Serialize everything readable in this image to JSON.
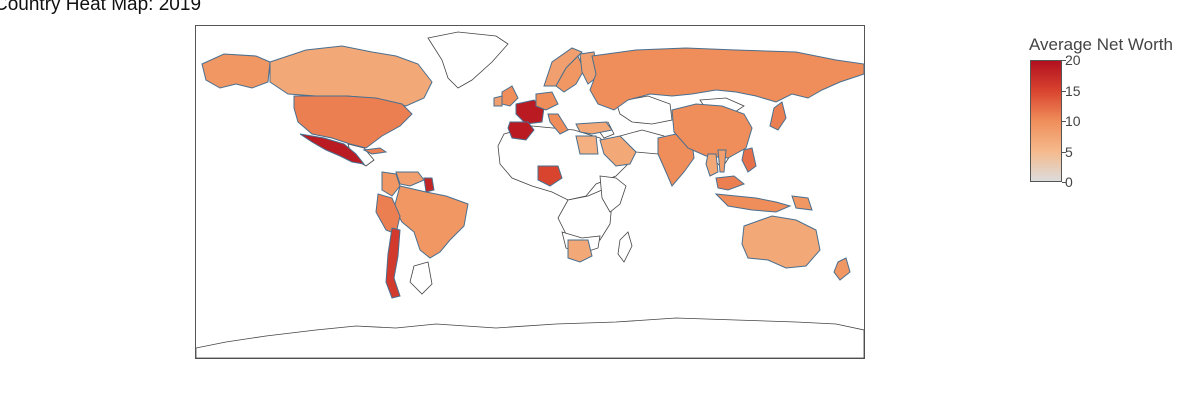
{
  "title": "Country Heat Map: 2019",
  "colorbar": {
    "title": "Average Net Worth",
    "min": 0,
    "max": 20,
    "ticks": [
      0,
      5,
      10,
      15,
      20
    ],
    "colors": [
      "#dcdcdc",
      "#f5b98b",
      "#ef8e5a",
      "#d9442f",
      "#b2101f"
    ]
  },
  "colors": {
    "border_highlighted": "#4a6f8f",
    "border_land": "#444444",
    "no_data_fill": "#ffffff"
  },
  "chart_data": {
    "type": "choropleth",
    "projection": "equirectangular",
    "regions": [
      {
        "region": "Alaska",
        "value": 9
      },
      {
        "region": "Canada",
        "value": 7
      },
      {
        "region": "United States",
        "value": 11
      },
      {
        "region": "Mexico",
        "value": 19
      },
      {
        "region": "Cuba",
        "value": 11
      },
      {
        "region": "Colombia",
        "value": 9
      },
      {
        "region": "Venezuela",
        "value": 8
      },
      {
        "region": "Guyana",
        "value": 18
      },
      {
        "region": "Brazil",
        "value": 9
      },
      {
        "region": "Peru",
        "value": 11
      },
      {
        "region": "Chile",
        "value": 16
      },
      {
        "region": "United Kingdom",
        "value": 10
      },
      {
        "region": "Ireland",
        "value": 8
      },
      {
        "region": "France",
        "value": 19
      },
      {
        "region": "Spain",
        "value": 19
      },
      {
        "region": "Germany",
        "value": 10
      },
      {
        "region": "Italy",
        "value": 10
      },
      {
        "region": "Norway",
        "value": 8
      },
      {
        "region": "Sweden",
        "value": 9
      },
      {
        "region": "Finland",
        "value": 8
      },
      {
        "region": "Russia",
        "value": 10
      },
      {
        "region": "Turkey",
        "value": 7
      },
      {
        "region": "Saudi Arabia",
        "value": 7
      },
      {
        "region": "Egypt",
        "value": 6
      },
      {
        "region": "Nigeria",
        "value": 15
      },
      {
        "region": "South Africa",
        "value": 7
      },
      {
        "region": "India",
        "value": 10
      },
      {
        "region": "China",
        "value": 10
      },
      {
        "region": "Japan",
        "value": 11
      },
      {
        "region": "Thailand",
        "value": 7
      },
      {
        "region": "Vietnam",
        "value": 8
      },
      {
        "region": "Malaysia",
        "value": 11
      },
      {
        "region": "Indonesia",
        "value": 10
      },
      {
        "region": "Philippines",
        "value": 12
      },
      {
        "region": "Papua New Guinea",
        "value": 9
      },
      {
        "region": "Australia",
        "value": 7
      },
      {
        "region": "New Zealand",
        "value": 9
      }
    ]
  }
}
